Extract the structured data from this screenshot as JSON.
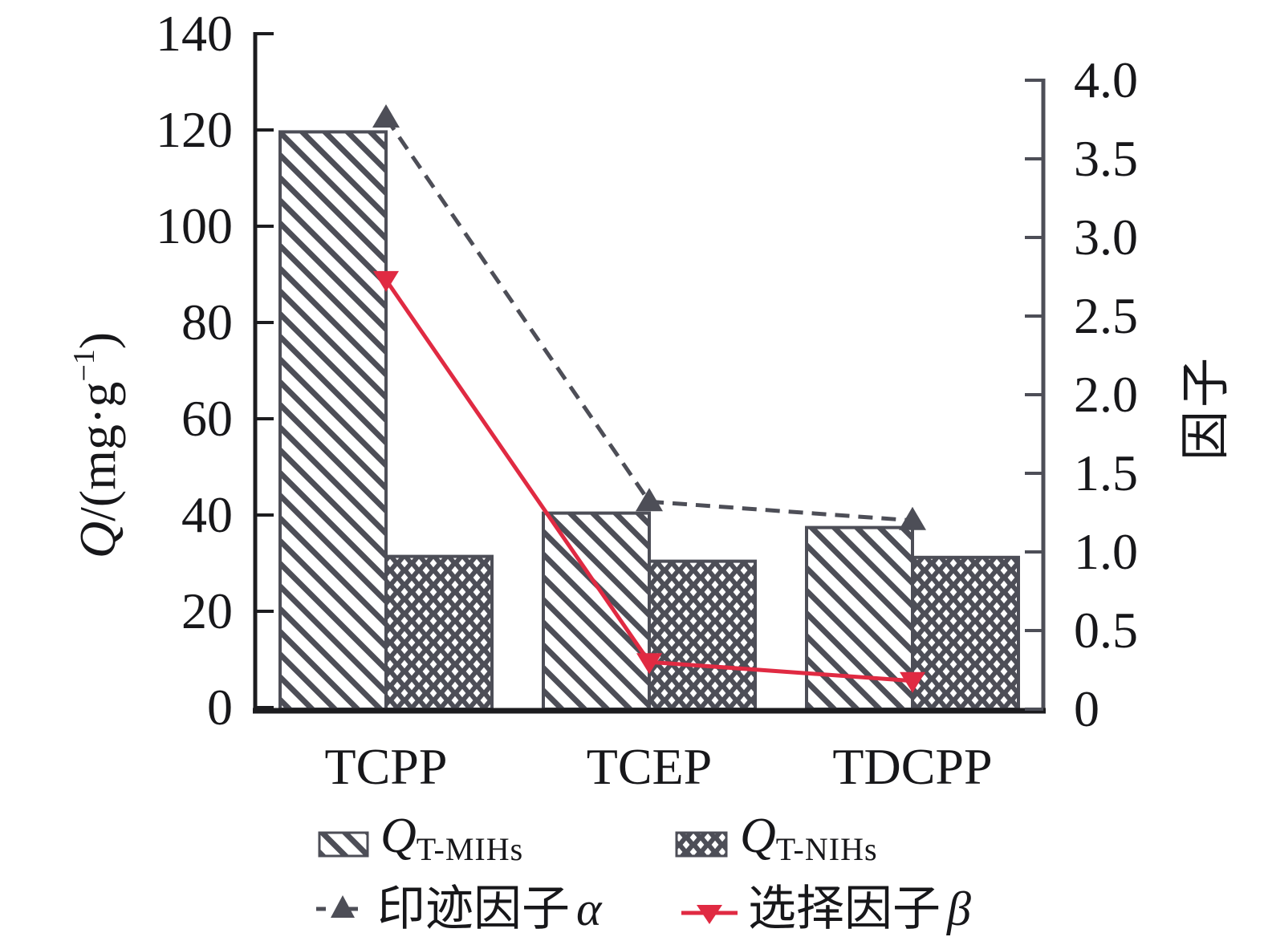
{
  "chart_data": {
    "type": "bar+line",
    "title": "",
    "categories": [
      "TCPP",
      "TCEP",
      "TDCPP"
    ],
    "bar_series": [
      {
        "name": "Q T-MIHs",
        "axis": "left",
        "pattern": "diagonal-hatch",
        "values": [
          119.6,
          40.4,
          37.4
        ]
      },
      {
        "name": "Q T-NIHs",
        "axis": "left",
        "pattern": "dot-grid",
        "values": [
          31.4,
          30.4,
          31.2
        ]
      }
    ],
    "line_series": [
      {
        "name": "印迹因子 α",
        "axis": "right",
        "style": "dashed",
        "marker": "triangle-up",
        "values": [
          3.76,
          1.32,
          1.2
        ]
      },
      {
        "name": "选择因子 β",
        "axis": "right",
        "style": "solid",
        "marker": "triangle-down",
        "values": [
          2.73,
          0.3,
          0.18
        ]
      }
    ],
    "y_left": {
      "symbol": "Q",
      "unit_open": "/(mg·g",
      "unit_sup": "−1",
      "unit_close": ")",
      "range": [
        0,
        140
      ],
      "ticks": [
        "140",
        "120",
        "100",
        "80",
        "60",
        "40",
        "20",
        "0"
      ]
    },
    "y_right": {
      "label": "因子",
      "range": [
        0,
        4.0
      ],
      "ticks": [
        "4.0",
        "3.5",
        "3.0",
        "2.5",
        "2.0",
        "1.5",
        "1.0",
        "0.5",
        "0"
      ]
    },
    "legend": {
      "mihs": {
        "symbol": "Q",
        "sub": "T-MIHs"
      },
      "nihs": {
        "symbol": "Q",
        "sub": "T-NIHs"
      },
      "alpha": {
        "label": "印迹因子",
        "symbol": "α"
      },
      "beta": {
        "label": "选择因子",
        "symbol": "β"
      }
    },
    "colors": {
      "dark": "#4d4e57",
      "red": "#e02a42",
      "axis": "#1c1c1f"
    },
    "grid": false,
    "legend_position": "bottom"
  }
}
